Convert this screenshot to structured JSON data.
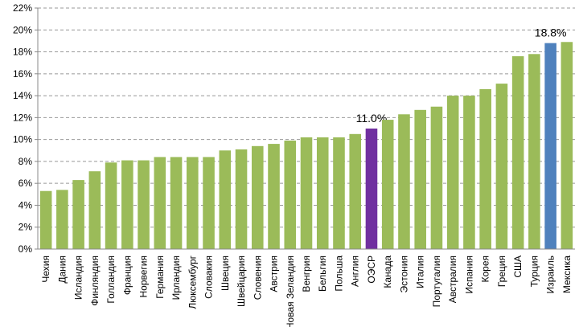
{
  "chart_data": {
    "type": "bar",
    "categories": [
      "Чехия",
      "Дания",
      "Исландия",
      "Финляндия",
      "Голландия",
      "Франция",
      "Норвегия",
      "Германия",
      "Ирландия",
      "Люксембург",
      "Словакия",
      "Швеция",
      "Швейцария",
      "Словения",
      "Австрия",
      "Новая Зеландия",
      "Венгрия",
      "Бельгия",
      "Польша",
      "Англия",
      "ОЭСР",
      "Канада",
      "Эстония",
      "Италия",
      "Португалия",
      "Австралия",
      "Испания",
      "Корея",
      "Греция",
      "США",
      "Турция",
      "Израиль",
      "Мексика"
    ],
    "values": [
      5.3,
      5.4,
      6.3,
      7.1,
      7.9,
      8.1,
      8.1,
      8.4,
      8.4,
      8.4,
      8.4,
      9.0,
      9.1,
      9.4,
      9.6,
      9.9,
      10.2,
      10.2,
      10.2,
      10.5,
      11.0,
      11.8,
      12.3,
      12.7,
      13.0,
      14.0,
      14.0,
      14.6,
      15.1,
      17.6,
      17.8,
      18.8,
      18.9
    ],
    "value_labels": [
      null,
      null,
      null,
      null,
      null,
      null,
      null,
      null,
      null,
      null,
      null,
      null,
      null,
      null,
      null,
      null,
      null,
      null,
      null,
      null,
      "11.0%",
      null,
      null,
      null,
      null,
      null,
      null,
      null,
      null,
      null,
      null,
      "18.8%",
      null
    ],
    "colors": [
      "#9bbb59",
      "#9bbb59",
      "#9bbb59",
      "#9bbb59",
      "#9bbb59",
      "#9bbb59",
      "#9bbb59",
      "#9bbb59",
      "#9bbb59",
      "#9bbb59",
      "#9bbb59",
      "#9bbb59",
      "#9bbb59",
      "#9bbb59",
      "#9bbb59",
      "#9bbb59",
      "#9bbb59",
      "#9bbb59",
      "#9bbb59",
      "#9bbb59",
      "#7030a0",
      "#9bbb59",
      "#9bbb59",
      "#9bbb59",
      "#9bbb59",
      "#9bbb59",
      "#9bbb59",
      "#9bbb59",
      "#9bbb59",
      "#9bbb59",
      "#9bbb59",
      "#4f81bd",
      "#9bbb59"
    ],
    "ylim": [
      0,
      22
    ],
    "yticks": [
      {
        "value": 0,
        "label": "0%"
      },
      {
        "value": 2,
        "label": "2%"
      },
      {
        "value": 4,
        "label": "4%"
      },
      {
        "value": 6,
        "label": "6%"
      },
      {
        "value": 8,
        "label": "8%"
      },
      {
        "value": 10,
        "label": "10%"
      },
      {
        "value": 12,
        "label": "12%"
      },
      {
        "value": 14,
        "label": "14%"
      },
      {
        "value": 16,
        "label": "16%"
      },
      {
        "value": 18,
        "label": "18%"
      },
      {
        "value": 20,
        "label": "20%"
      },
      {
        "value": 22,
        "label": "22%"
      }
    ],
    "grid": true
  }
}
